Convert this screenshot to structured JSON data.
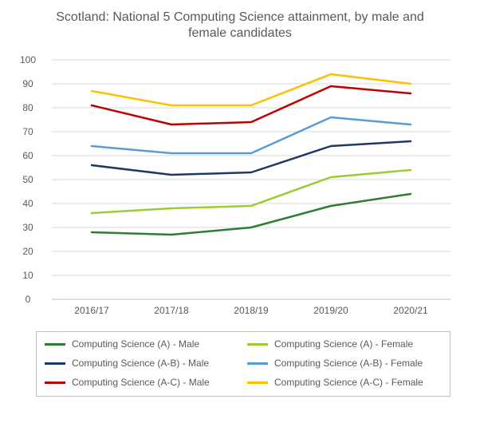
{
  "chart": {
    "type": "line",
    "title": "Scotland: National 5 Computing Science attainment, by male and female candidates",
    "title_fontsize": 16,
    "title_color": "#595959",
    "background_color": "#ffffff",
    "grid_color": "#d9d9d9",
    "axis_line_color": "#bfbfbf",
    "label_fontsize": 12,
    "label_color": "#595959",
    "categories": [
      "2016/17",
      "2017/18",
      "2018/19",
      "2019/20",
      "2020/21"
    ],
    "ylim": [
      0,
      100
    ],
    "ytick_step": 10,
    "line_width": 2.5,
    "series": [
      {
        "name": "Computing Science (A) - Male",
        "color": "#2e7d32",
        "values": [
          28,
          27,
          30,
          39,
          44
        ]
      },
      {
        "name": "Computing Science (A) - Female",
        "color": "#9acd32",
        "values": [
          36,
          38,
          39,
          51,
          54
        ]
      },
      {
        "name": "Computing Science (A-B) - Male",
        "color": "#1f3864",
        "values": [
          56,
          52,
          53,
          64,
          66
        ]
      },
      {
        "name": "Computing Science (A-B) - Female",
        "color": "#5b9bd5",
        "values": [
          64,
          61,
          61,
          76,
          73
        ]
      },
      {
        "name": "Computing Science (A-C) - Male",
        "color": "#c00000",
        "values": [
          81,
          73,
          74,
          89,
          86
        ]
      },
      {
        "name": "Computing Science (A-C) - Female",
        "color": "#ffc000",
        "values": [
          87,
          81,
          81,
          94,
          90
        ]
      }
    ]
  }
}
